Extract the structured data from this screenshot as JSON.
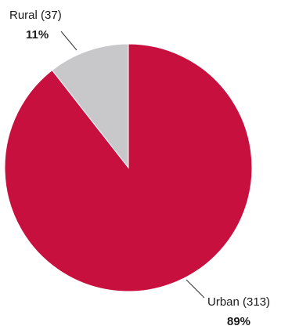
{
  "chart_data": {
    "type": "pie",
    "title": "",
    "start_angle_deg": 0,
    "direction": "clockwise",
    "slices": [
      {
        "name": "Urban",
        "label": "Urban (313)",
        "count": 313,
        "percent_label": "89%",
        "color": "#c8103e"
      },
      {
        "name": "Rural",
        "label": "Rural (37)",
        "count": 37,
        "percent_label": "11%",
        "color": "#c8c8ca"
      }
    ],
    "legend": "none",
    "labels": "outside-with-leader-lines"
  }
}
